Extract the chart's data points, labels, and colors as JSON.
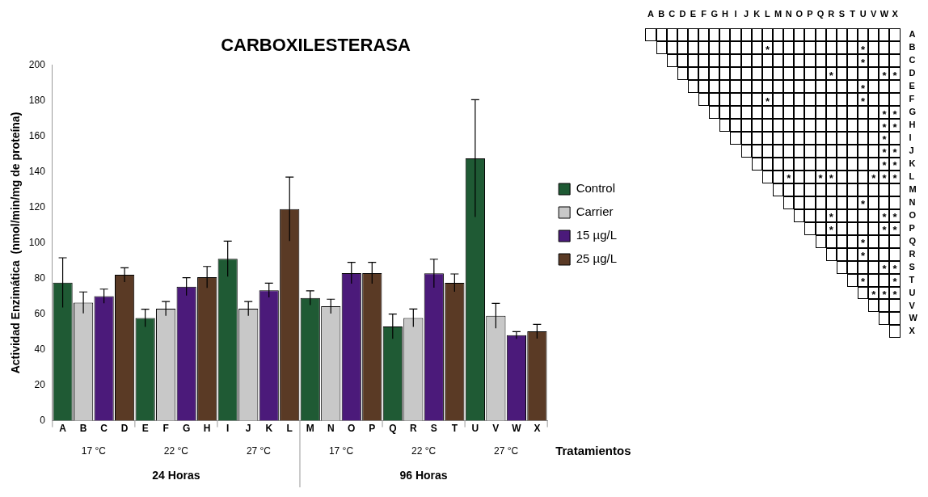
{
  "chart_data": [
    {
      "type": "bar",
      "title": "CARBOXILESTERASA",
      "ylabel": "Actividad Enzimática  (nmol/min/mg de proteína)",
      "xlabel": "Tratamientos",
      "categories": [
        "A",
        "B",
        "C",
        "D",
        "E",
        "F",
        "G",
        "H",
        "I",
        "J",
        "K",
        "L",
        "M",
        "N",
        "O",
        "P",
        "Q",
        "R",
        "S",
        "T",
        "U",
        "V",
        "W",
        "X"
      ],
      "series": [
        {
          "name": "Control",
          "color": "#1f5a34",
          "values": [
            77.6,
            null,
            null,
            null,
            57.7,
            null,
            null,
            null,
            91,
            null,
            null,
            null,
            69,
            null,
            null,
            null,
            53,
            null,
            null,
            null,
            147.5,
            null,
            null,
            null
          ],
          "errors": [
            14,
            null,
            null,
            null,
            5,
            null,
            null,
            null,
            10,
            null,
            null,
            null,
            4,
            null,
            null,
            null,
            7,
            null,
            null,
            null,
            33,
            null,
            null,
            null
          ]
        },
        {
          "name": "Carrier",
          "color": "#c8c8c8",
          "values": [
            null,
            66.4,
            null,
            null,
            null,
            63,
            null,
            null,
            null,
            63,
            null,
            null,
            null,
            64.3,
            null,
            null,
            null,
            57.8,
            null,
            null,
            null,
            59,
            null,
            null
          ],
          "errors": [
            null,
            6,
            null,
            null,
            null,
            4,
            null,
            null,
            null,
            4,
            null,
            null,
            null,
            4,
            null,
            null,
            null,
            5,
            null,
            null,
            null,
            7,
            null,
            null
          ]
        },
        {
          "name": "15 µg/L",
          "color": "#4b1a7a",
          "values": [
            null,
            null,
            70,
            null,
            null,
            null,
            75.4,
            null,
            null,
            null,
            73.3,
            null,
            null,
            null,
            83,
            null,
            null,
            null,
            82.8,
            null,
            null,
            null,
            48.1,
            null
          ],
          "errors": [
            null,
            null,
            4,
            null,
            null,
            null,
            5,
            null,
            null,
            null,
            4,
            null,
            null,
            null,
            6,
            null,
            null,
            null,
            8,
            null,
            null,
            null,
            2,
            null
          ]
        },
        {
          "name": "25 µg/L",
          "color": "#5a3a25",
          "values": [
            null,
            null,
            null,
            82,
            null,
            null,
            null,
            80.7,
            null,
            null,
            null,
            119,
            null,
            null,
            null,
            83,
            null,
            null,
            null,
            77.5,
            null,
            null,
            null,
            50.2
          ],
          "errors": [
            null,
            null,
            null,
            4,
            null,
            null,
            null,
            6,
            null,
            null,
            null,
            18,
            null,
            null,
            null,
            6,
            null,
            null,
            null,
            5,
            null,
            null,
            null,
            4
          ]
        }
      ],
      "ylim": [
        0,
        200
      ],
      "yticks": [
        0,
        20,
        40,
        60,
        80,
        100,
        120,
        140,
        160,
        180,
        200
      ],
      "legend": "right",
      "annotations": [
        "17 °C",
        "22 °C",
        "27 °C",
        "17 °C",
        "22 °C",
        "27 °C",
        "24 Horas",
        "96 Horas"
      ]
    },
    {
      "type": "other",
      "categories": [
        "A",
        "B",
        "C",
        "D",
        "E",
        "F",
        "G",
        "H",
        "I",
        "J",
        "K",
        "L",
        "M",
        "N",
        "O",
        "P",
        "Q",
        "R",
        "S",
        "T",
        "U",
        "V",
        "W",
        "X"
      ],
      "y_categories": [
        "A",
        "B",
        "C",
        "D",
        "E",
        "F",
        "G",
        "H",
        "I",
        "J",
        "K",
        "L",
        "M",
        "N",
        "O",
        "P",
        "Q",
        "R",
        "S",
        "T",
        "U",
        "V",
        "W",
        "X"
      ],
      "cell_labels": [
        [
          null,
          null,
          null,
          null,
          null,
          null,
          null,
          null,
          null,
          null,
          null,
          null,
          null,
          null,
          null,
          null,
          null,
          null,
          null,
          null,
          null,
          null,
          null,
          null
        ],
        [
          null,
          null,
          null,
          null,
          null,
          null,
          null,
          null,
          null,
          null,
          null,
          "*",
          null,
          null,
          null,
          null,
          null,
          null,
          null,
          null,
          "*",
          null,
          null,
          null
        ],
        [
          null,
          null,
          null,
          null,
          null,
          null,
          null,
          null,
          null,
          null,
          null,
          null,
          null,
          null,
          null,
          null,
          null,
          null,
          null,
          null,
          "*",
          null,
          null,
          null
        ],
        [
          null,
          null,
          null,
          null,
          null,
          null,
          null,
          null,
          null,
          null,
          null,
          null,
          null,
          null,
          null,
          null,
          null,
          "*",
          null,
          null,
          null,
          null,
          "*",
          "*"
        ],
        [
          null,
          null,
          null,
          null,
          null,
          null,
          null,
          null,
          null,
          null,
          null,
          null,
          null,
          null,
          null,
          null,
          null,
          null,
          null,
          null,
          "*",
          null,
          null,
          null
        ],
        [
          null,
          null,
          null,
          null,
          null,
          null,
          null,
          null,
          null,
          null,
          null,
          "*",
          null,
          null,
          null,
          null,
          null,
          null,
          null,
          null,
          "*",
          null,
          null,
          null
        ],
        [
          null,
          null,
          null,
          null,
          null,
          null,
          null,
          null,
          null,
          null,
          null,
          null,
          null,
          null,
          null,
          null,
          null,
          null,
          null,
          null,
          null,
          null,
          "*",
          "*"
        ],
        [
          null,
          null,
          null,
          null,
          null,
          null,
          null,
          null,
          null,
          null,
          null,
          null,
          null,
          null,
          null,
          null,
          null,
          null,
          null,
          null,
          null,
          null,
          "*",
          "*"
        ],
        [
          null,
          null,
          null,
          null,
          null,
          null,
          null,
          null,
          null,
          null,
          null,
          null,
          null,
          null,
          null,
          null,
          null,
          null,
          null,
          null,
          null,
          null,
          "*",
          null
        ],
        [
          null,
          null,
          null,
          null,
          null,
          null,
          null,
          null,
          null,
          null,
          null,
          null,
          null,
          null,
          null,
          null,
          null,
          null,
          null,
          null,
          null,
          null,
          "*",
          "*"
        ],
        [
          null,
          null,
          null,
          null,
          null,
          null,
          null,
          null,
          null,
          null,
          null,
          null,
          null,
          null,
          null,
          null,
          null,
          null,
          null,
          null,
          null,
          null,
          "*",
          "*"
        ],
        [
          null,
          null,
          null,
          null,
          null,
          null,
          null,
          null,
          null,
          null,
          null,
          null,
          null,
          "*",
          null,
          null,
          "*",
          "*",
          null,
          null,
          null,
          "*",
          "*",
          "*"
        ],
        [
          null,
          null,
          null,
          null,
          null,
          null,
          null,
          null,
          null,
          null,
          null,
          null,
          null,
          null,
          null,
          null,
          null,
          null,
          null,
          null,
          null,
          null,
          null,
          null
        ],
        [
          null,
          null,
          null,
          null,
          null,
          null,
          null,
          null,
          null,
          null,
          null,
          null,
          null,
          null,
          null,
          null,
          null,
          null,
          null,
          null,
          "*",
          null,
          null,
          null
        ],
        [
          null,
          null,
          null,
          null,
          null,
          null,
          null,
          null,
          null,
          null,
          null,
          null,
          null,
          null,
          null,
          null,
          null,
          "*",
          null,
          null,
          null,
          null,
          "*",
          "*"
        ],
        [
          null,
          null,
          null,
          null,
          null,
          null,
          null,
          null,
          null,
          null,
          null,
          null,
          null,
          null,
          null,
          null,
          null,
          "*",
          null,
          null,
          null,
          null,
          "*",
          "*"
        ],
        [
          null,
          null,
          null,
          null,
          null,
          null,
          null,
          null,
          null,
          null,
          null,
          null,
          null,
          null,
          null,
          null,
          null,
          null,
          null,
          null,
          "*",
          null,
          null,
          null
        ],
        [
          null,
          null,
          null,
          null,
          null,
          null,
          null,
          null,
          null,
          null,
          null,
          null,
          null,
          null,
          null,
          null,
          null,
          null,
          null,
          null,
          "*",
          null,
          null,
          null
        ],
        [
          null,
          null,
          null,
          null,
          null,
          null,
          null,
          null,
          null,
          null,
          null,
          null,
          null,
          null,
          null,
          null,
          null,
          null,
          null,
          null,
          null,
          null,
          "*",
          "*"
        ],
        [
          null,
          null,
          null,
          null,
          null,
          null,
          null,
          null,
          null,
          null,
          null,
          null,
          null,
          null,
          null,
          null,
          null,
          null,
          null,
          null,
          "*",
          null,
          null,
          "*"
        ],
        [
          null,
          null,
          null,
          null,
          null,
          null,
          null,
          null,
          null,
          null,
          null,
          null,
          null,
          null,
          null,
          null,
          null,
          null,
          null,
          null,
          null,
          "*",
          "*",
          "*"
        ],
        [
          null,
          null,
          null,
          null,
          null,
          null,
          null,
          null,
          null,
          null,
          null,
          null,
          null,
          null,
          null,
          null,
          null,
          null,
          null,
          null,
          null,
          null,
          null,
          null
        ],
        [
          null,
          null,
          null,
          null,
          null,
          null,
          null,
          null,
          null,
          null,
          null,
          null,
          null,
          null,
          null,
          null,
          null,
          null,
          null,
          null,
          null,
          null,
          null,
          null
        ],
        [
          null,
          null,
          null,
          null,
          null,
          null,
          null,
          null,
          null,
          null,
          null,
          null,
          null,
          null,
          null,
          null,
          null,
          null,
          null,
          null,
          null,
          null,
          null,
          null
        ]
      ]
    }
  ]
}
